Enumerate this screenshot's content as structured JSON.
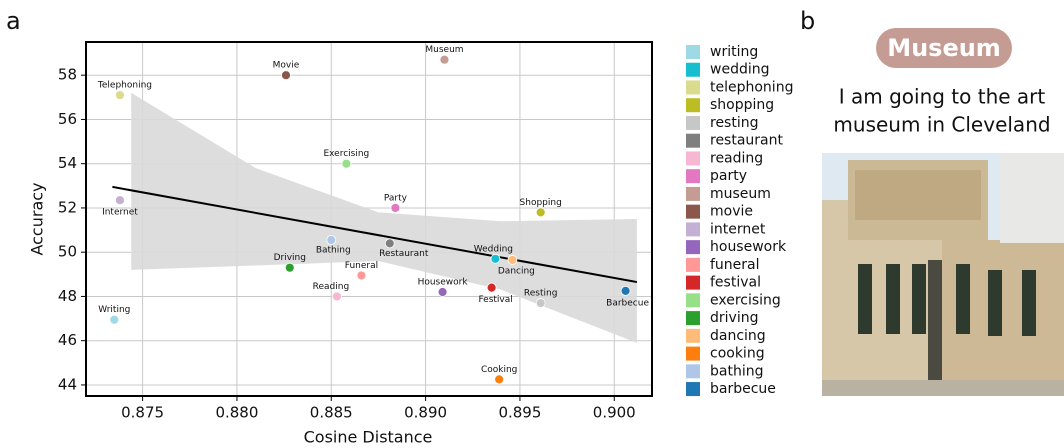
{
  "chart_data": {
    "type": "scatter",
    "panel_label": "a",
    "x_label": "Cosine Distance",
    "y_label": "Accuracy",
    "xlim": [
      0.872,
      0.902
    ],
    "ylim": [
      43.5,
      59.5
    ],
    "xticks": [
      0.875,
      {
        "value": 0.88,
        "label": "0.880"
      },
      0.885,
      {
        "value": 0.89,
        "label": "0.890"
      },
      0.895,
      {
        "value": 0.9,
        "label": "0.900"
      }
    ],
    "yticks": [
      44,
      46,
      48,
      50,
      52,
      54,
      56,
      58
    ],
    "grid": true,
    "trend": {
      "color": "#000000",
      "x": [
        0.8734,
        0.9012
      ],
      "y": [
        52.95,
        48.65
      ]
    },
    "band": {
      "color": "#d9d9d9",
      "x": [
        0.8744,
        0.881,
        0.8875,
        0.894,
        0.9012
      ],
      "upper": [
        57.2,
        53.8,
        51.8,
        51.4,
        51.5
      ],
      "lower": [
        49.2,
        49.4,
        49.6,
        48.3,
        45.9
      ]
    },
    "series": [
      {
        "name": "writing",
        "label": "Writing",
        "color": "#9edae5",
        "x": [
          0.8735
        ],
        "values": [
          46.95
        ]
      },
      {
        "name": "wedding",
        "label": "Wedding",
        "color": "#17becf",
        "x": [
          0.8937
        ],
        "values": [
          49.7
        ]
      },
      {
        "name": "telephoning",
        "label": "Telephoning",
        "color": "#dbdb8d",
        "x": [
          0.8738
        ],
        "values": [
          57.1
        ]
      },
      {
        "name": "shopping",
        "label": "Shopping",
        "color": "#bcbd22",
        "x": [
          0.8961
        ],
        "values": [
          51.8
        ]
      },
      {
        "name": "resting",
        "label": "Resting",
        "color": "#c7c7c7",
        "x": [
          0.8961
        ],
        "values": [
          47.7
        ]
      },
      {
        "name": "restaurant",
        "label": "Restaurant",
        "color": "#7f7f7f",
        "x": [
          0.8881
        ],
        "values": [
          50.4
        ]
      },
      {
        "name": "reading",
        "label": "Reading",
        "color": "#f7b6d2",
        "x": [
          0.8853
        ],
        "values": [
          48.0
        ]
      },
      {
        "name": "party",
        "label": "Party",
        "color": "#e377c2",
        "x": [
          0.8884
        ],
        "values": [
          52.0
        ]
      },
      {
        "name": "museum",
        "label": "Museum",
        "color": "#c49c94",
        "x": [
          0.891
        ],
        "values": [
          58.7
        ]
      },
      {
        "name": "movie",
        "label": "Movie",
        "color": "#8c564b",
        "x": [
          0.8826
        ],
        "values": [
          58.0
        ]
      },
      {
        "name": "internet",
        "label": "Internet",
        "color": "#c5b0d5",
        "x": [
          0.8738
        ],
        "values": [
          52.35
        ]
      },
      {
        "name": "housework",
        "label": "Housework",
        "color": "#9467bd",
        "x": [
          0.8909
        ],
        "values": [
          48.2
        ]
      },
      {
        "name": "funeral",
        "label": "Funeral",
        "color": "#ff9896",
        "x": [
          0.8866
        ],
        "values": [
          48.95
        ]
      },
      {
        "name": "festival",
        "label": "Festival",
        "color": "#d62728",
        "x": [
          0.8935
        ],
        "values": [
          48.4
        ]
      },
      {
        "name": "exercising",
        "label": "Exercising",
        "color": "#98df8a",
        "x": [
          0.8858
        ],
        "values": [
          54.0
        ]
      },
      {
        "name": "driving",
        "label": "Driving",
        "color": "#2ca02c",
        "x": [
          0.8828
        ],
        "values": [
          49.3
        ]
      },
      {
        "name": "dancing",
        "label": "Dancing",
        "color": "#ffbb78",
        "x": [
          0.8946
        ],
        "values": [
          49.65
        ]
      },
      {
        "name": "cooking",
        "label": "Cooking",
        "color": "#ff7f0e",
        "x": [
          0.8939
        ],
        "values": [
          44.25
        ]
      },
      {
        "name": "bathing",
        "label": "Bathing",
        "color": "#aec7e8",
        "x": [
          0.885
        ],
        "values": [
          50.55
        ]
      },
      {
        "name": "barbecue",
        "label": "Barbecue",
        "color": "#1f77b4",
        "x": [
          0.9006
        ],
        "values": [
          48.25
        ]
      }
    ]
  },
  "panel_b": {
    "label": "b",
    "badge": "Museum",
    "caption": [
      "I am going to the art",
      "museum in Cleveland"
    ]
  }
}
